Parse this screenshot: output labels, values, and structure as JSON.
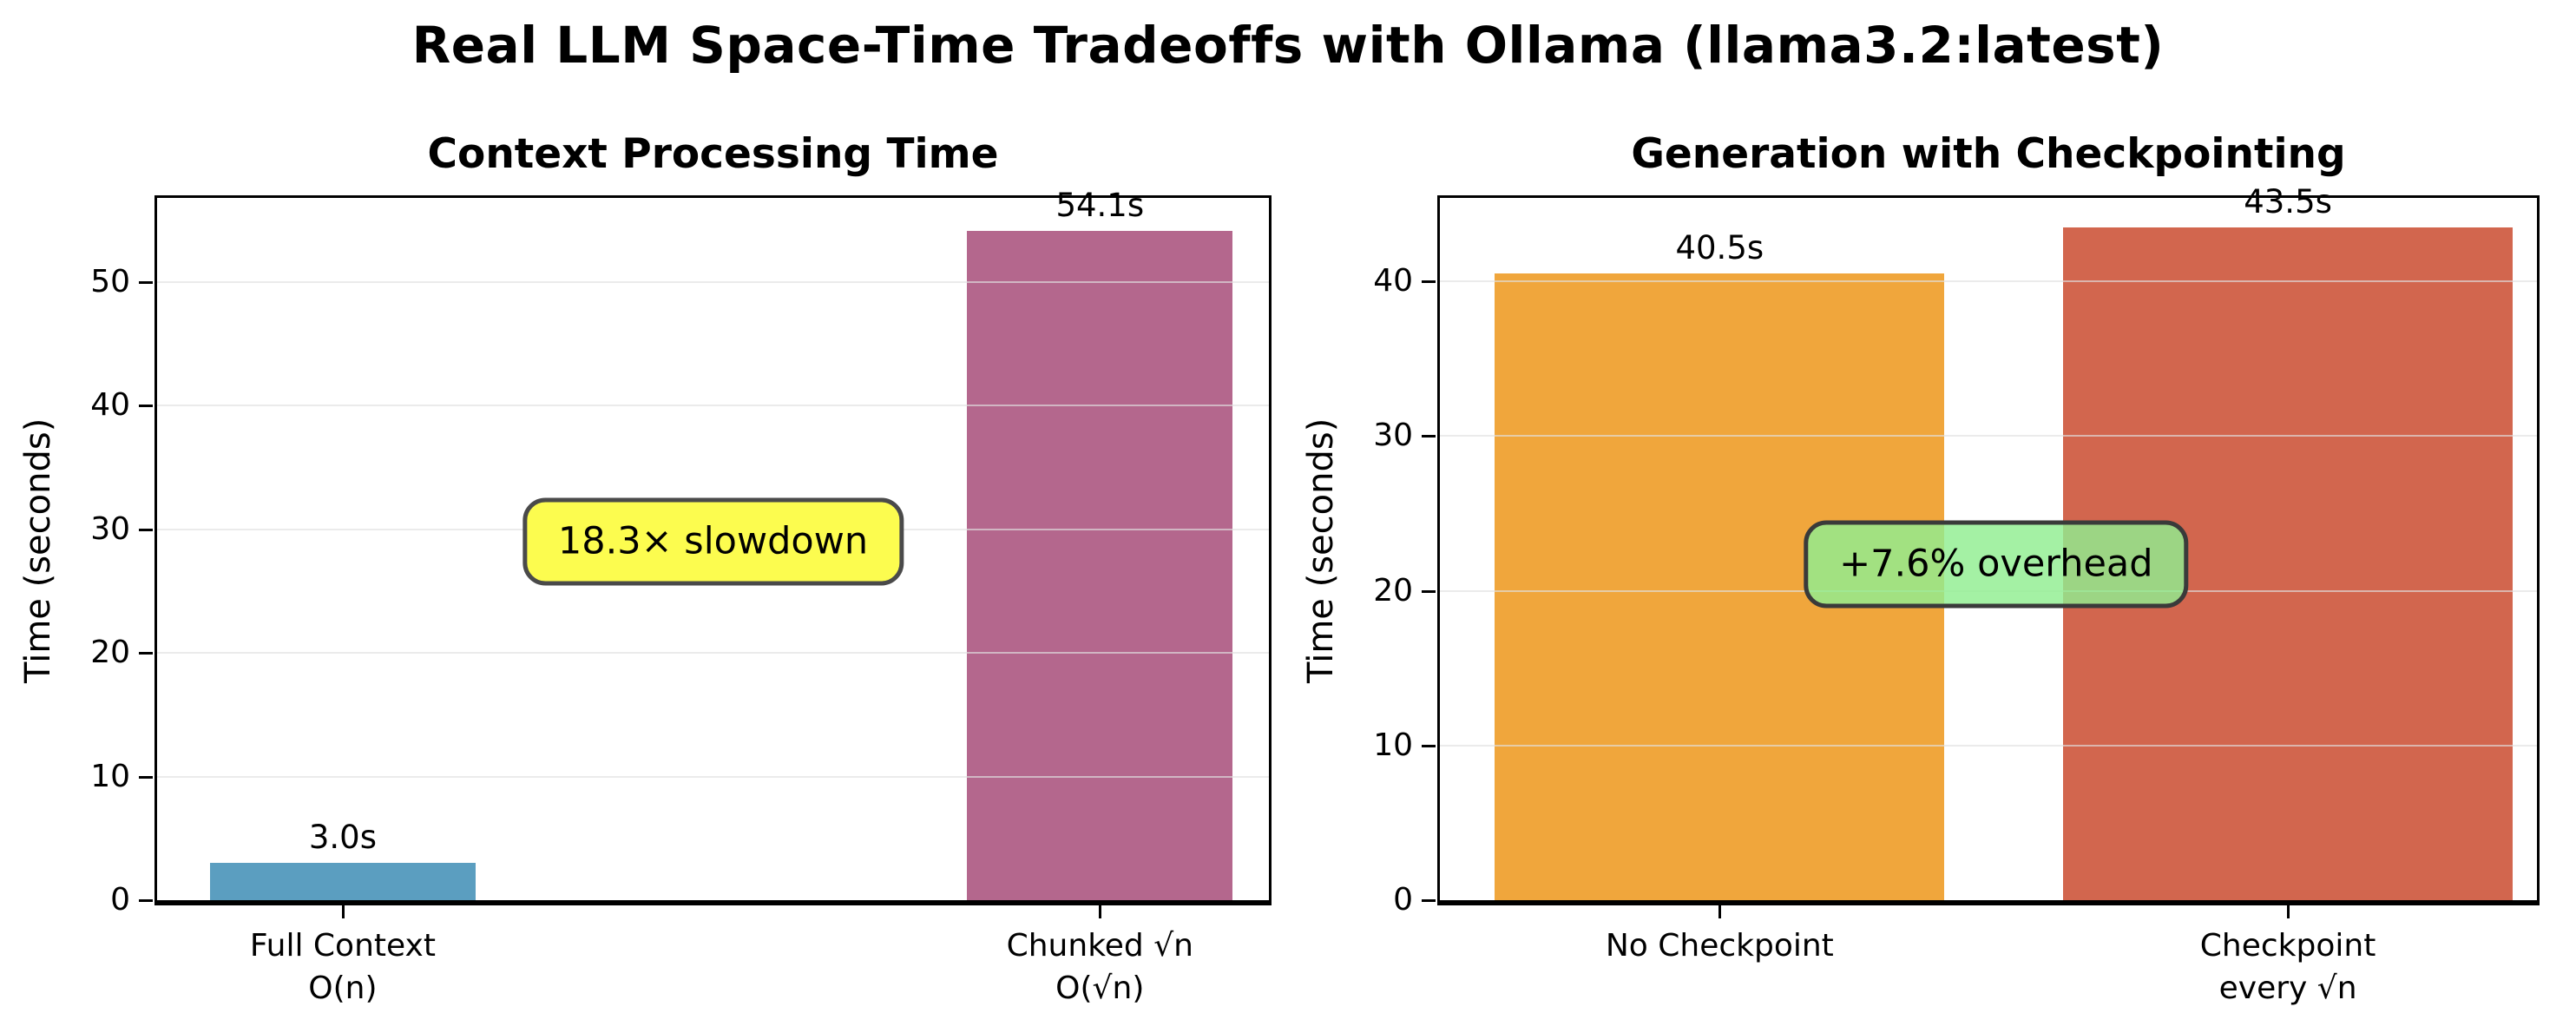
{
  "figure": {
    "title": "Real LLM Space-Time Tradeoffs with Ollama (llama3.2:latest)",
    "background": "#ffffff"
  },
  "chart_data": [
    {
      "type": "bar",
      "title": "Context Processing Time",
      "ylabel": "Time (seconds)",
      "categories": [
        "Full Context\nO(n)",
        "Chunked √n\nO(√n)"
      ],
      "values": [
        3.0,
        54.1
      ],
      "bar_labels": [
        "3.0s",
        "54.1s"
      ],
      "bar_colors": [
        "#5B9EC0",
        "#B4678D"
      ],
      "yticks": [
        0,
        10,
        20,
        30,
        40,
        50
      ],
      "ylim": [
        0,
        56.8
      ],
      "grid": true,
      "legend": "none",
      "annotation": {
        "text": "18.3× slowdown",
        "bg_color": "#FCFC4F",
        "border_color": "#4A4A4A",
        "x_frac": 0.5,
        "y_value": 29.0
      },
      "layout": {
        "bar_centers_frac": [
          0.167,
          0.848
        ],
        "bar_width_frac": 0.239
      }
    },
    {
      "type": "bar",
      "title": "Generation with Checkpointing",
      "ylabel": "Time (seconds)",
      "categories": [
        "No Checkpoint",
        "Checkpoint\nevery √n"
      ],
      "values": [
        40.5,
        43.5
      ],
      "bar_labels": [
        "40.5s",
        "43.5s"
      ],
      "bar_colors": [
        "#F0A63C",
        "#D2664E"
      ],
      "yticks": [
        0,
        10,
        20,
        30,
        40
      ],
      "ylim": [
        0,
        45.4
      ],
      "grid": true,
      "legend": "none",
      "annotation": {
        "text": "+7.6% overhead",
        "bg_color": "rgba(144, 238, 144, 0.82)",
        "border_color": "#3A3A3A",
        "x_frac": 0.507,
        "y_value": 21.7
      },
      "layout": {
        "bar_centers_frac": [
          0.255,
          0.773
        ],
        "bar_width_frac": 0.41
      }
    }
  ]
}
